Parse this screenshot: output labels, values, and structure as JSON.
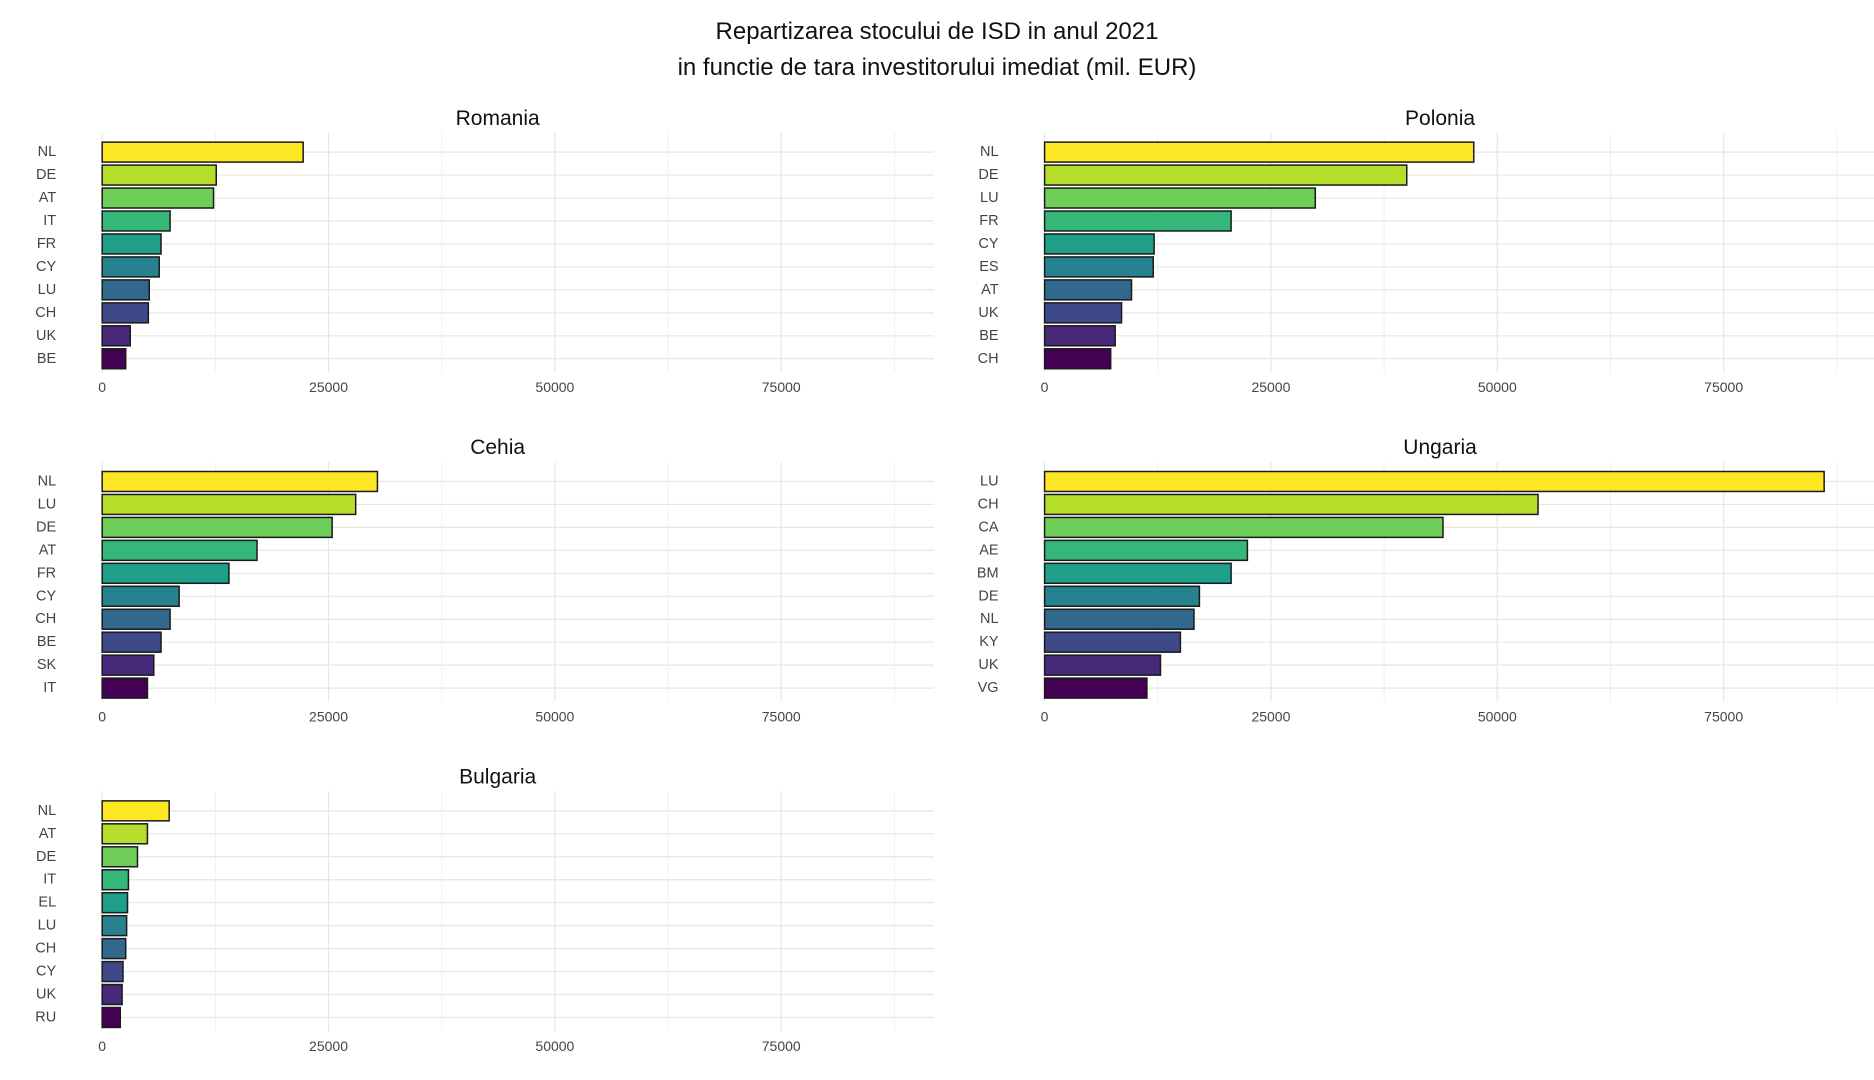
{
  "title": {
    "line1": "Repartizarea stocului de ISD in anul 2021",
    "line2": "in functie de tara investitorului imediat (mil. EUR)"
  },
  "palette": [
    "#fde725",
    "#b5de2b",
    "#6ece58",
    "#35b779",
    "#1f9e89",
    "#26828e",
    "#31688e",
    "#3e4989",
    "#482878",
    "#440154"
  ],
  "chart_data": [
    {
      "type": "bar",
      "orientation": "horizontal",
      "title": "Romania",
      "categories": [
        "NL",
        "DE",
        "AT",
        "IT",
        "FR",
        "CY",
        "LU",
        "CH",
        "UK",
        "BE"
      ],
      "values": [
        22200,
        12600,
        12300,
        7500,
        6500,
        6300,
        5200,
        5100,
        3100,
        2600
      ],
      "xlim": [
        0,
        90000
      ],
      "xticks": [
        "0",
        "25000",
        "50000",
        "75000"
      ],
      "grid": true
    },
    {
      "type": "bar",
      "orientation": "horizontal",
      "title": "Polonia",
      "categories": [
        "NL",
        "DE",
        "LU",
        "FR",
        "CY",
        "ES",
        "AT",
        "UK",
        "BE",
        "CH"
      ],
      "values": [
        47400,
        40000,
        29900,
        20600,
        12100,
        12000,
        9600,
        8500,
        7800,
        7300
      ],
      "xlim": [
        0,
        90000
      ],
      "xticks": [
        "0",
        "25000",
        "50000",
        "75000"
      ],
      "grid": true
    },
    {
      "type": "bar",
      "orientation": "horizontal",
      "title": "Cehia",
      "categories": [
        "NL",
        "LU",
        "DE",
        "AT",
        "FR",
        "CY",
        "CH",
        "BE",
        "SK",
        "IT"
      ],
      "values": [
        30400,
        28000,
        25400,
        17100,
        14000,
        8500,
        7500,
        6500,
        5700,
        5000
      ],
      "xlim": [
        0,
        90000
      ],
      "xticks": [
        "0",
        "25000",
        "50000",
        "75000"
      ],
      "grid": true
    },
    {
      "type": "bar",
      "orientation": "horizontal",
      "title": "Ungaria",
      "categories": [
        "LU",
        "CH",
        "CA",
        "AE",
        "BM",
        "DE",
        "NL",
        "KY",
        "UK",
        "VG"
      ],
      "values": [
        86100,
        54500,
        44000,
        22400,
        20600,
        17100,
        16500,
        15000,
        12800,
        11300
      ],
      "xlim": [
        0,
        90000
      ],
      "xticks": [
        "0",
        "25000",
        "50000",
        "75000"
      ],
      "grid": true
    },
    {
      "type": "bar",
      "orientation": "horizontal",
      "title": "Bulgaria",
      "categories": [
        "NL",
        "AT",
        "DE",
        "IT",
        "EL",
        "LU",
        "CH",
        "CY",
        "UK",
        "RU"
      ],
      "values": [
        7400,
        5000,
        3900,
        2900,
        2800,
        2700,
        2600,
        2300,
        2200,
        2000
      ],
      "xlim": [
        0,
        90000
      ],
      "xticks": [
        "0",
        "25000",
        "50000",
        "75000"
      ],
      "grid": true
    }
  ]
}
